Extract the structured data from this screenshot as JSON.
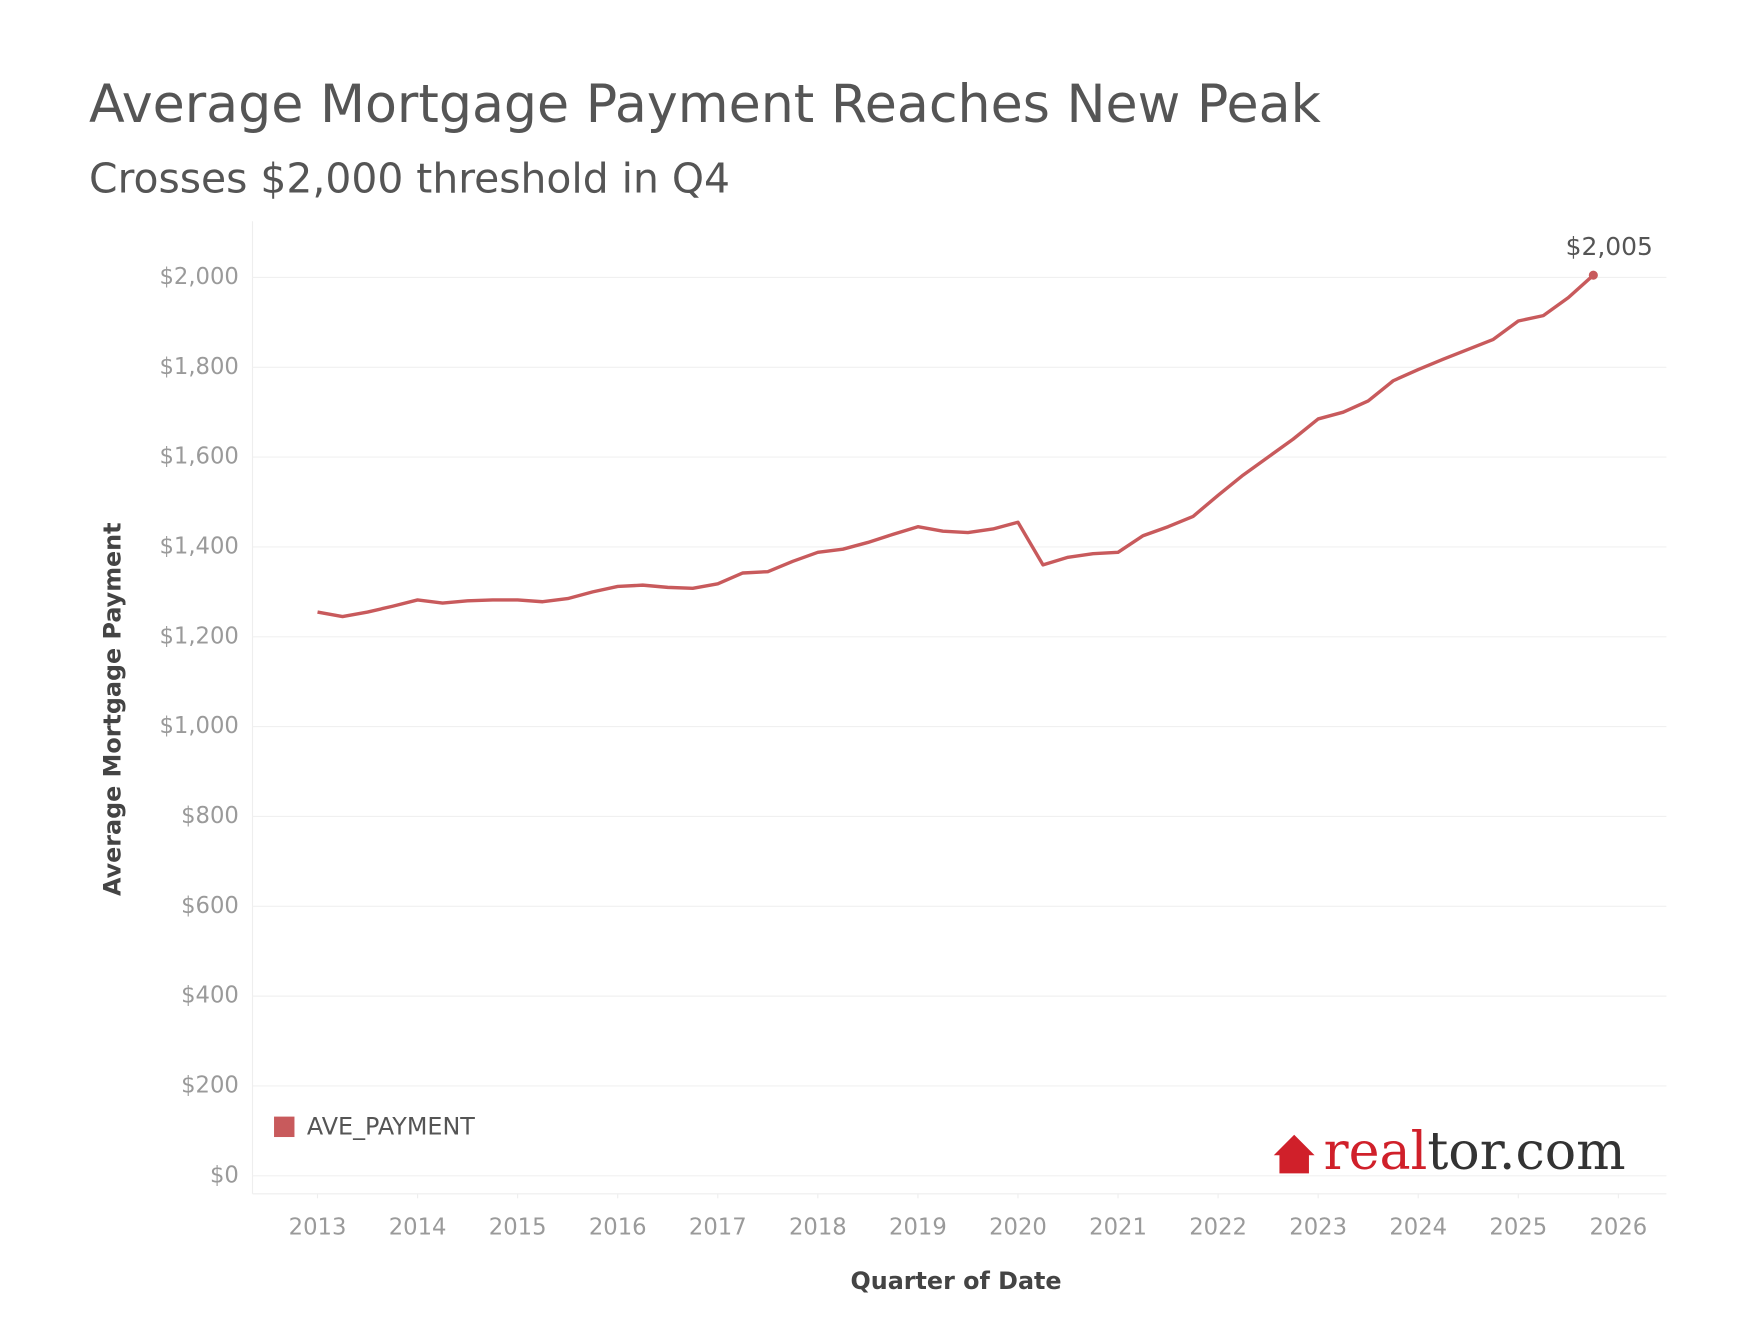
{
  "chart_data": {
    "type": "line",
    "title": "Average Mortgage Payment Reaches New Peak",
    "subtitle": "Crosses $2,000 threshold in Q4",
    "x_label": "Quarter of Date",
    "y_label": "Average Mortgage Payment",
    "x": [
      2013,
      2013.25,
      2013.5,
      2013.75,
      2014,
      2014.25,
      2014.5,
      2014.75,
      2015,
      2015.25,
      2015.5,
      2015.75,
      2016,
      2016.25,
      2016.5,
      2016.75,
      2017,
      2017.25,
      2017.5,
      2017.75,
      2018,
      2018.25,
      2018.5,
      2018.75,
      2019,
      2019.25,
      2019.5,
      2019.75,
      2020,
      2020.25,
      2020.5,
      2020.75,
      2021,
      2021.25,
      2021.5,
      2021.75,
      2022,
      2022.25,
      2022.5,
      2022.75,
      2023,
      2023.25,
      2023.5,
      2023.75,
      2024,
      2024.25,
      2024.5,
      2024.75,
      2025,
      2025.25,
      2025.5,
      2025.75
    ],
    "series": [
      {
        "name": "AVE_PAYMENT",
        "color": "#c85a5c",
        "values": [
          1255,
          1245,
          1255,
          1268,
          1282,
          1275,
          1280,
          1282,
          1282,
          1278,
          1285,
          1300,
          1312,
          1315,
          1310,
          1308,
          1318,
          1342,
          1345,
          1368,
          1388,
          1395,
          1410,
          1428,
          1445,
          1435,
          1432,
          1440,
          1455,
          1360,
          1377,
          1385,
          1388,
          1425,
          1445,
          1468,
          1515,
          1560,
          1600,
          1640,
          1685,
          1700,
          1725,
          1770,
          1795,
          1818,
          1840,
          1862,
          1903,
          1915,
          1955,
          2005
        ]
      }
    ],
    "annotation": "$2,005",
    "xlim": [
      2012.35,
      2026.48
    ],
    "xticks": [
      2013,
      2014,
      2015,
      2016,
      2017,
      2018,
      2019,
      2020,
      2021,
      2022,
      2023,
      2024,
      2025,
      2026
    ],
    "ylim": [
      -40,
      2125
    ],
    "yticks": [
      {
        "value": 0,
        "label": "$0"
      },
      {
        "value": 200,
        "label": "$200"
      },
      {
        "value": 400,
        "label": "$400"
      },
      {
        "value": 600,
        "label": "$600"
      },
      {
        "value": 800,
        "label": "$800"
      },
      {
        "value": 1000,
        "label": "$1,000"
      },
      {
        "value": 1200,
        "label": "$1,200"
      },
      {
        "value": 1400,
        "label": "$1,400"
      },
      {
        "value": 1600,
        "label": "$1,600"
      },
      {
        "value": 1800,
        "label": "$1,800"
      },
      {
        "value": 2000,
        "label": "$2,000"
      }
    ],
    "grid": true,
    "legend": "bottom-left",
    "logo": {
      "brand": "real",
      "rest": "tor.com"
    }
  }
}
